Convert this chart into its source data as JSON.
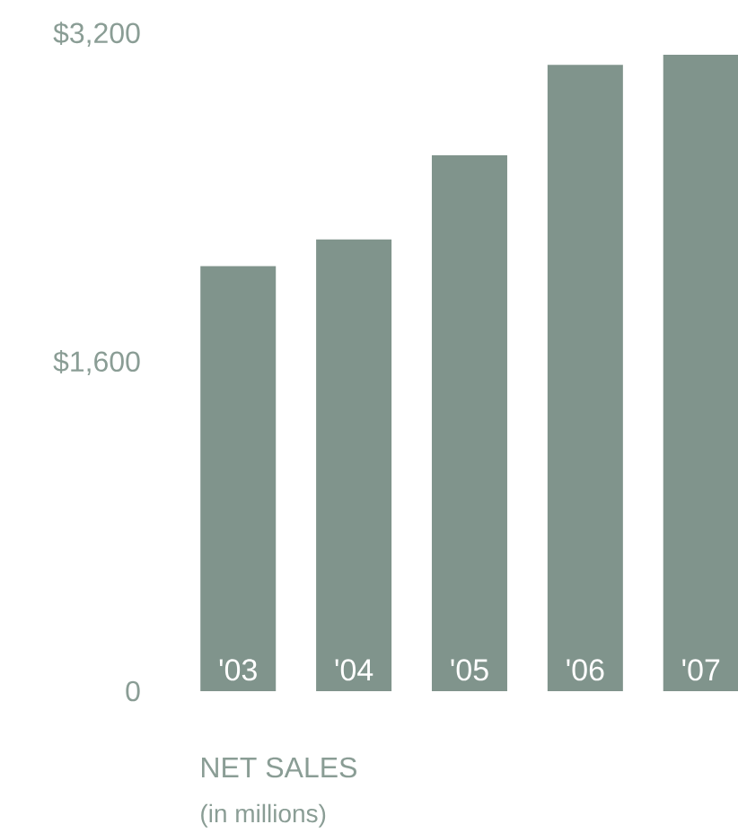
{
  "chart_data": {
    "type": "bar",
    "title": "NET SALES",
    "subtitle": "(in millions)",
    "categories": [
      "'03",
      "'04",
      "'05",
      "'06",
      "'07"
    ],
    "values": [
      2070,
      2200,
      2610,
      3050,
      3100
    ],
    "color": "#80948c",
    "ylim": [
      0,
      3200
    ],
    "yticks": [
      {
        "value": 0,
        "label": "0"
      },
      {
        "value": 1600,
        "label": "$1,600"
      },
      {
        "value": 3200,
        "label": "$3,200"
      }
    ],
    "grid": false
  }
}
